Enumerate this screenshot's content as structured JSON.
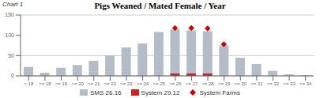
{
  "chart_data": {
    "type": "bar",
    "title": "Pigs Weaned / Mated Female / Year",
    "annotations": [
      "Chart 1"
    ],
    "categories": [
      "< 18",
      ">= 18",
      ">= 19",
      ">= 20",
      ">= 21",
      ">= 22",
      ">= 23",
      ">= 24",
      ">= 25",
      ">= 26",
      ">= 27",
      ">= 28",
      ">= 29",
      ">= 30",
      ">= 31",
      ">= 32",
      ">= 33",
      ">= 34"
    ],
    "series": [
      {
        "name": "SMS 26.16",
        "color": "#b4bcc8",
        "values": [
          22,
          8,
          20,
          27,
          37,
          50,
          70,
          80,
          108,
          115,
          112,
          110,
          75,
          45,
          29,
          12,
          4,
          2
        ]
      },
      {
        "name": "System 29.12",
        "color": "#cc2222",
        "values": [
          0,
          0,
          0,
          0,
          0,
          0,
          0,
          0,
          0,
          6,
          6,
          6,
          0,
          0,
          0,
          0,
          0,
          0
        ]
      },
      {
        "name": "System Farms",
        "type": "scatter",
        "marker": "diamond",
        "color": "#cc0000",
        "values": [
          null,
          null,
          null,
          null,
          null,
          null,
          null,
          null,
          null,
          118,
          118,
          117,
          78,
          null,
          null,
          null,
          null,
          null
        ]
      }
    ],
    "ylim": [
      0,
      150
    ],
    "yticks": [
      0,
      50,
      100,
      150
    ],
    "grid": true,
    "legend": "bottom"
  }
}
